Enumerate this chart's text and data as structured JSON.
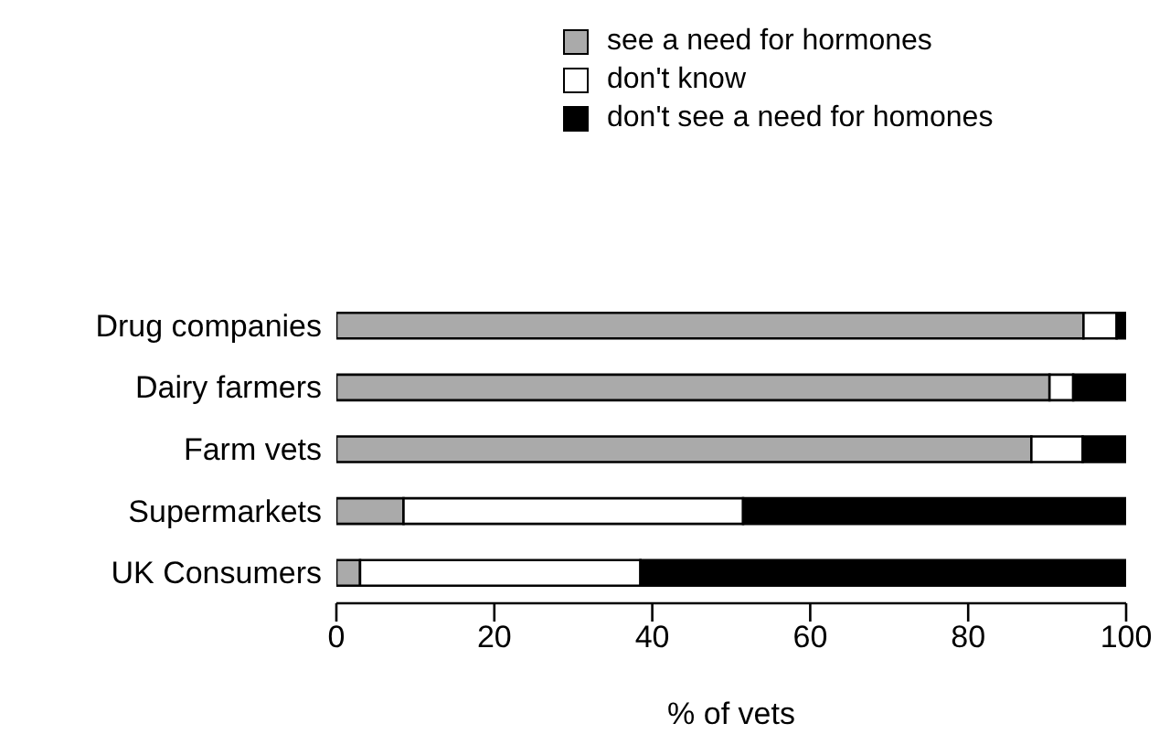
{
  "chart_data": {
    "type": "bar",
    "orientation": "horizontal",
    "stacked": true,
    "categories": [
      "Drug companies",
      "Dairy farmers",
      "Farm vets",
      "Supermarkets",
      "UK Consumers"
    ],
    "series": [
      {
        "name": "see a need for hormones",
        "color": "#aaaaaa",
        "values": [
          94.6,
          90.3,
          88,
          8.5,
          3
        ]
      },
      {
        "name": "don't know",
        "color": "#ffffff",
        "values": [
          4.2,
          3,
          6.5,
          43,
          35.5
        ]
      },
      {
        "name": "don't see a need for homones",
        "color": "#000000",
        "values": [
          1.2,
          6.7,
          5.5,
          48.5,
          61.5
        ]
      }
    ],
    "xlim": [
      0,
      100
    ],
    "xticks": [
      0,
      20,
      40,
      60,
      80,
      100
    ],
    "xlabel": "% of vets",
    "grid": false,
    "legend": "top"
  }
}
